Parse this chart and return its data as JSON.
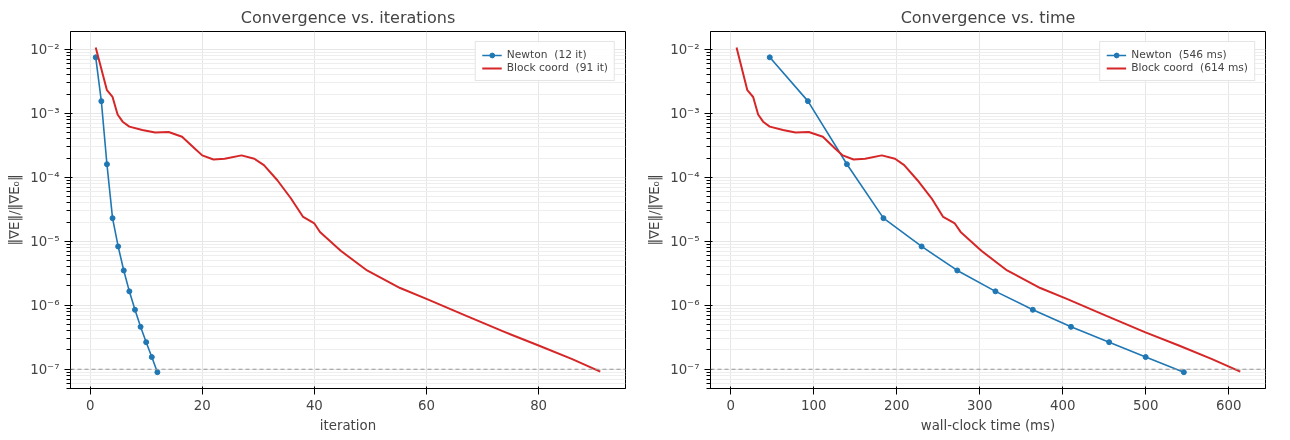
{
  "chart_data": [
    {
      "type": "line",
      "title": "Convergence vs. iterations",
      "xlabel": "iteration",
      "ylabel": "‖∇E‖/‖∇E₀‖",
      "log": "y",
      "grid": true,
      "legend": "top right",
      "xlim": [
        -3.5,
        95.5
      ],
      "xticks": [
        0,
        20,
        40,
        60,
        80
      ],
      "ylim": [
        5e-08,
        0.019
      ],
      "yticks": [
        {
          "value": 1e-07,
          "label": "10⁻⁷"
        },
        {
          "value": 1e-06,
          "label": "10⁻⁶"
        },
        {
          "value": 1e-05,
          "label": "10⁻⁵"
        },
        {
          "value": 0.0001,
          "label": "10⁻⁴"
        },
        {
          "value": 0.001,
          "label": "10⁻³"
        },
        {
          "value": 0.01,
          "label": "10⁻²"
        }
      ],
      "ref_lines": [
        {
          "axis": "y",
          "value": 1e-07,
          "color": "#999999",
          "line_style": "dashed"
        }
      ],
      "series": [
        {
          "name": "Newton  (12 it)",
          "color": "#1f77b4",
          "marker": "circle",
          "x": [
            1,
            2,
            3,
            4,
            5,
            6,
            7,
            8,
            9,
            10,
            11,
            12
          ],
          "values": [
            0.0075,
            0.00155,
            0.00016,
            2.3e-05,
            8.3e-06,
            3.5e-06,
            1.65e-06,
            8.5e-07,
            4.6e-07,
            2.65e-07,
            1.55e-07,
            9e-08
          ]
        },
        {
          "name": "Block coord  (91 it)",
          "color": "#d62728",
          "marker": "none",
          "x": [
            1,
            3,
            4,
            4.9,
            5.8,
            7,
            9.3,
            11.6,
            14,
            16.4,
            18.7,
            20,
            22,
            24,
            27,
            29.3,
            31,
            33.4,
            35.8,
            38,
            40,
            41,
            44.7,
            49.4,
            55.3,
            60,
            67,
            74,
            80,
            86,
            91
          ],
          "values": [
            0.0107,
            0.0023,
            0.0018,
            0.00096,
            0.00074,
            0.00062,
            0.00055,
            0.0005,
            0.00051,
            0.00043,
            0.00028,
            0.00022,
            0.00019,
            0.000195,
            0.00022,
            0.000195,
            0.000155,
            9e-05,
            4.7e-05,
            2.4e-05,
            1.9e-05,
            1.4e-05,
            7.1e-06,
            3.5e-06,
            1.86e-06,
            1.26e-06,
            6.9e-07,
            3.8e-07,
            2.35e-07,
            1.44e-07,
            9.2e-08
          ]
        }
      ]
    },
    {
      "type": "line",
      "title": "Convergence vs. time",
      "xlabel": "wall-clock time (ms)",
      "ylabel": "‖∇E‖/‖∇E₀‖",
      "log": "y",
      "grid": true,
      "legend": "top right",
      "xlim": [
        -24.4,
        644.4
      ],
      "xticks": [
        0,
        100,
        200,
        300,
        400,
        500,
        600
      ],
      "ylim": [
        5e-08,
        0.019
      ],
      "yticks": [
        {
          "value": 1e-07,
          "label": "10⁻⁷"
        },
        {
          "value": 1e-06,
          "label": "10⁻⁶"
        },
        {
          "value": 1e-05,
          "label": "10⁻⁵"
        },
        {
          "value": 0.0001,
          "label": "10⁻⁴"
        },
        {
          "value": 0.001,
          "label": "10⁻³"
        },
        {
          "value": 0.01,
          "label": "10⁻²"
        }
      ],
      "ref_lines": [
        {
          "axis": "y",
          "value": 1e-07,
          "color": "#999999",
          "line_style": "dashed"
        }
      ],
      "series": [
        {
          "name": "Newton  (546 ms)",
          "color": "#1f77b4",
          "marker": "circle",
          "x": [
            47,
            93,
            140,
            184,
            230,
            273,
            319,
            364,
            410,
            456,
            500,
            546
          ],
          "values": [
            0.0075,
            0.00155,
            0.00016,
            2.3e-05,
            8.3e-06,
            3.5e-06,
            1.65e-06,
            8.5e-07,
            4.6e-07,
            2.65e-07,
            1.55e-07,
            9e-08
          ]
        },
        {
          "name": "Block coord  (614 ms)",
          "color": "#d62728",
          "marker": "none",
          "x": [
            7,
            20,
            27,
            33,
            39,
            47,
            63,
            78,
            94,
            111,
            126,
            135,
            148,
            162,
            182,
            198,
            209,
            225,
            242,
            256,
            270,
            277,
            302,
            333,
            373,
            405,
            452,
            499,
            540,
            580,
            614
          ],
          "values": [
            0.0107,
            0.0023,
            0.0018,
            0.00096,
            0.00074,
            0.00062,
            0.00055,
            0.0005,
            0.00051,
            0.00043,
            0.00028,
            0.00022,
            0.00019,
            0.000195,
            0.00022,
            0.000195,
            0.000155,
            9e-05,
            4.7e-05,
            2.4e-05,
            1.9e-05,
            1.4e-05,
            7.1e-06,
            3.5e-06,
            1.86e-06,
            1.26e-06,
            6.9e-07,
            3.8e-07,
            2.35e-07,
            1.44e-07,
            9.2e-08
          ]
        }
      ]
    }
  ]
}
